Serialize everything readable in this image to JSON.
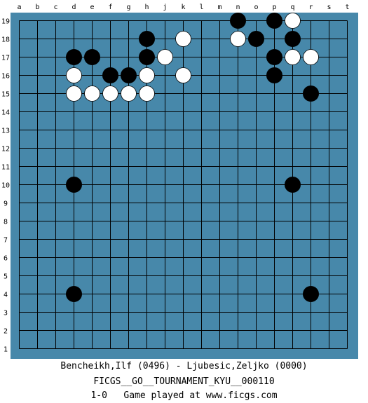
{
  "board": {
    "size": 19,
    "column_labels": [
      "a",
      "b",
      "c",
      "d",
      "e",
      "f",
      "g",
      "h",
      "j",
      "k",
      "l",
      "m",
      "n",
      "o",
      "p",
      "q",
      "r",
      "s",
      "t"
    ],
    "row_labels": [
      "19",
      "18",
      "17",
      "16",
      "15",
      "14",
      "13",
      "12",
      "11",
      "10",
      "9",
      "8",
      "7",
      "6",
      "5",
      "4",
      "3",
      "2",
      "1"
    ],
    "colors": {
      "board": "#4788aa",
      "grid": "#000000",
      "black_stone": "#000000",
      "white_stone": "#ffffff"
    },
    "stones": [
      {
        "point": "n19",
        "color": "black"
      },
      {
        "point": "p19",
        "color": "black"
      },
      {
        "point": "q19",
        "color": "white"
      },
      {
        "point": "h18",
        "color": "black"
      },
      {
        "point": "k18",
        "color": "white"
      },
      {
        "point": "n18",
        "color": "white"
      },
      {
        "point": "o18",
        "color": "black"
      },
      {
        "point": "q18",
        "color": "black"
      },
      {
        "point": "d17",
        "color": "black"
      },
      {
        "point": "e17",
        "color": "black"
      },
      {
        "point": "h17",
        "color": "black"
      },
      {
        "point": "j17",
        "color": "white"
      },
      {
        "point": "p17",
        "color": "black"
      },
      {
        "point": "q17",
        "color": "white"
      },
      {
        "point": "r17",
        "color": "white"
      },
      {
        "point": "d16",
        "color": "white"
      },
      {
        "point": "f16",
        "color": "black"
      },
      {
        "point": "g16",
        "color": "black"
      },
      {
        "point": "h16",
        "color": "white"
      },
      {
        "point": "k16",
        "color": "white"
      },
      {
        "point": "p16",
        "color": "black"
      },
      {
        "point": "d15",
        "color": "white"
      },
      {
        "point": "e15",
        "color": "white"
      },
      {
        "point": "f15",
        "color": "white"
      },
      {
        "point": "g15",
        "color": "white"
      },
      {
        "point": "h15",
        "color": "white"
      },
      {
        "point": "r15",
        "color": "black"
      },
      {
        "point": "d10",
        "color": "black"
      },
      {
        "point": "q10",
        "color": "black"
      },
      {
        "point": "d4",
        "color": "black"
      },
      {
        "point": "r4",
        "color": "black"
      }
    ]
  },
  "footer": {
    "players": "Bencheikh,Ilf (0496) - Ljubesic,Zeljko (0000)",
    "tournament": "FICGS__GO__TOURNAMENT_KYU__000110",
    "result_line": "1-0   Game played at www.ficgs.com"
  }
}
